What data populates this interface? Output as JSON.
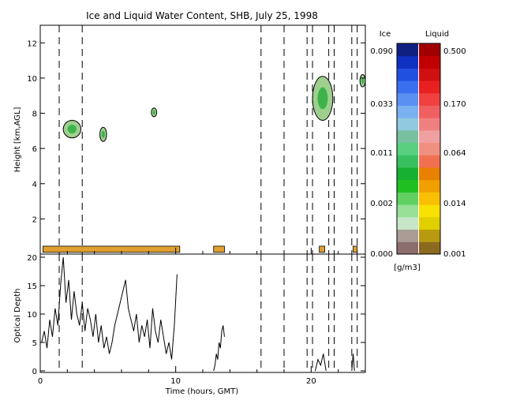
{
  "chart_data": [
    {
      "type": "heatmap",
      "title": "Ice and Liquid Water Content, SHB, July 25, 1998",
      "ylabel": "Height [km,AGL]",
      "xlim": [
        0,
        24
      ],
      "ylim": [
        0,
        13
      ],
      "xticks": [
        "0",
        "10",
        "20"
      ],
      "yticks": [
        "2",
        "4",
        "6",
        "8",
        "10",
        "12"
      ],
      "dashed_lines_x": [
        1.4,
        3.1,
        16.3,
        18.0,
        19.7,
        20.1,
        21.3,
        21.7,
        23.0,
        23.4
      ],
      "colorbar": {
        "ice_label": "Ice",
        "liquid_label": "Liquid",
        "units": "[g/m3]",
        "ice_ticks": [
          "0.090",
          "0.033",
          "0.011",
          "0.002",
          "0.000"
        ],
        "liquid_ticks": [
          "0.500",
          "0.170",
          "0.064",
          "0.014",
          "0.001"
        ]
      },
      "features": [
        {
          "phase": "ice",
          "t0": 1.7,
          "t1": 3.0,
          "h0": 6.6,
          "h1": 7.6
        },
        {
          "phase": "ice",
          "t0": 4.4,
          "t1": 4.9,
          "h0": 6.4,
          "h1": 7.2
        },
        {
          "phase": "ice",
          "t0": 8.2,
          "t1": 8.6,
          "h0": 7.8,
          "h1": 8.3
        },
        {
          "phase": "ice",
          "t0": 20.1,
          "t1": 21.6,
          "h0": 7.6,
          "h1": 10.1
        },
        {
          "phase": "ice",
          "t0": 23.6,
          "t1": 24.0,
          "h0": 9.5,
          "h1": 10.2
        },
        {
          "phase": "liquid",
          "t0": 0.2,
          "t1": 10.3,
          "h0": 0.1,
          "h1": 0.45
        },
        {
          "phase": "liquid",
          "t0": 12.8,
          "t1": 13.6,
          "h0": 0.1,
          "h1": 0.45
        },
        {
          "phase": "liquid",
          "t0": 20.6,
          "t1": 21.0,
          "h0": 0.1,
          "h1": 0.45
        },
        {
          "phase": "liquid",
          "t0": 23.1,
          "t1": 23.4,
          "h0": 0.1,
          "h1": 0.45
        }
      ]
    },
    {
      "type": "line",
      "xlabel": "Time (hours, GMT)",
      "ylabel": "Optical Depth",
      "xlim": [
        0,
        24
      ],
      "ylim": [
        0,
        20
      ],
      "xticks": [
        "0",
        "10",
        "20"
      ],
      "yticks": [
        "0",
        "5",
        "10",
        "15",
        "20"
      ],
      "series": [
        {
          "x": [
            0.1,
            0.3,
            0.5,
            0.7,
            0.9,
            1.1,
            1.3,
            1.5,
            1.7,
            1.9,
            2.1,
            2.3,
            2.5,
            2.7,
            2.9,
            3.1,
            3.3,
            3.5,
            3.7,
            3.9,
            4.1,
            4.3,
            4.5,
            4.7,
            4.9,
            5.1,
            5.3,
            5.5,
            5.7,
            5.9,
            6.1,
            6.3,
            6.5,
            6.7,
            6.9,
            7.1,
            7.3,
            7.5,
            7.7,
            7.9,
            8.1,
            8.3,
            8.5,
            8.7,
            8.9,
            9.1,
            9.3,
            9.5,
            9.7,
            9.9,
            10.1
          ],
          "y": [
            5,
            7,
            4,
            9,
            6,
            11,
            8,
            15,
            20,
            12,
            16,
            9,
            14,
            10,
            8,
            12,
            7,
            11,
            9,
            6,
            10,
            5,
            8,
            4,
            6,
            3,
            5,
            8,
            10,
            12,
            14,
            16,
            11,
            9,
            7,
            10,
            5,
            8,
            6,
            9,
            4,
            11,
            7,
            5,
            9,
            6,
            3,
            5,
            2,
            8,
            17
          ]
        },
        {
          "x": [
            12.8,
            12.9,
            13.0,
            13.1,
            13.2,
            13.3,
            13.4,
            13.5,
            13.6
          ],
          "y": [
            0,
            1,
            3,
            2,
            5,
            4,
            7,
            8,
            6
          ]
        },
        {
          "x": [
            20.3,
            20.5,
            20.7,
            20.9,
            21.1
          ],
          "y": [
            0,
            2,
            1,
            3,
            0
          ]
        },
        {
          "x": [
            23.0,
            23.1,
            23.2
          ],
          "y": [
            0,
            3,
            0
          ]
        }
      ]
    }
  ]
}
